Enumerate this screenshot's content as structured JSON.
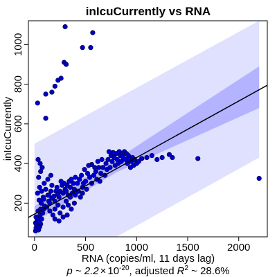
{
  "chart_data": {
    "type": "scatter",
    "title": "inIcuCurrently vs RNA",
    "xlabel": "RNA (copies/ml, 11 days lag)",
    "ylabel": "inIcuCurrently",
    "caption": {
      "p_prefix": "p ~ 2.2",
      "p_times": "×",
      "p_base": "10",
      "p_exp": "-20",
      "r2_prefix": ", adjusted",
      "r2_r": "R",
      "r2_exp": "2",
      "r2_value": " ~ 28.6%"
    },
    "xlim": [
      -60,
      2280
    ],
    "ylim": [
      30,
      1120
    ],
    "x_ticks": [
      0,
      500,
      1000,
      1500,
      2000
    ],
    "y_ticks": [
      200,
      400,
      600,
      800,
      1000
    ],
    "grid": false,
    "colors": {
      "points": "#0000cc",
      "point_edge": "#000033",
      "prediction_band": "#e0e0ff",
      "confidence_band": "#b3b3ff",
      "fit_line": "#000000"
    },
    "fit_line": {
      "intercept": 145,
      "slope": 0.285
    },
    "prediction_band": {
      "upper": [
        [
          0,
          500
        ],
        [
          2200,
          1120
        ]
      ],
      "lower": [
        [
          0,
          -200
        ],
        [
          2200,
          430
        ]
      ]
    },
    "confidence_band": {
      "upper": [
        [
          0,
          185
        ],
        [
          800,
          420
        ],
        [
          2200,
          890
        ]
      ],
      "lower": [
        [
          0,
          105
        ],
        [
          800,
          355
        ],
        [
          2200,
          680
        ]
      ]
    },
    "points": [
      [
        300,
        1090
      ],
      [
        570,
        1060
      ],
      [
        470,
        985
      ],
      [
        550,
        985
      ],
      [
        290,
        910
      ],
      [
        310,
        900
      ],
      [
        260,
        830
      ],
      [
        230,
        820
      ],
      [
        200,
        790
      ],
      [
        110,
        750
      ],
      [
        170,
        760
      ],
      [
        30,
        705
      ],
      [
        110,
        628
      ],
      [
        10,
        60
      ],
      [
        15,
        75
      ],
      [
        20,
        90
      ],
      [
        10,
        100
      ],
      [
        25,
        110
      ],
      [
        30,
        120
      ],
      [
        15,
        130
      ],
      [
        40,
        65
      ],
      [
        50,
        80
      ],
      [
        60,
        95
      ],
      [
        45,
        105
      ],
      [
        70,
        120
      ],
      [
        55,
        140
      ],
      [
        80,
        150
      ],
      [
        35,
        160
      ],
      [
        60,
        170
      ],
      [
        90,
        170
      ],
      [
        100,
        185
      ],
      [
        65,
        200
      ],
      [
        45,
        215
      ],
      [
        85,
        230
      ],
      [
        30,
        250
      ],
      [
        70,
        260
      ],
      [
        50,
        280
      ],
      [
        95,
        300
      ],
      [
        40,
        330
      ],
      [
        60,
        360
      ],
      [
        75,
        380
      ],
      [
        55,
        400
      ],
      [
        35,
        420
      ],
      [
        120,
        180
      ],
      [
        140,
        210
      ],
      [
        130,
        240
      ],
      [
        150,
        200
      ],
      [
        170,
        225
      ],
      [
        160,
        260
      ],
      [
        190,
        235
      ],
      [
        200,
        210
      ],
      [
        210,
        260
      ],
      [
        230,
        245
      ],
      [
        220,
        280
      ],
      [
        250,
        260
      ],
      [
        270,
        290
      ],
      [
        260,
        310
      ],
      [
        240,
        230
      ],
      [
        280,
        250
      ],
      [
        300,
        270
      ],
      [
        290,
        300
      ],
      [
        320,
        290
      ],
      [
        310,
        260
      ],
      [
        340,
        310
      ],
      [
        350,
        280
      ],
      [
        330,
        240
      ],
      [
        360,
        320
      ],
      [
        380,
        300
      ],
      [
        400,
        330
      ],
      [
        390,
        270
      ],
      [
        420,
        300
      ],
      [
        440,
        320
      ],
      [
        430,
        260
      ],
      [
        460,
        340
      ],
      [
        480,
        300
      ],
      [
        470,
        280
      ],
      [
        500,
        310
      ],
      [
        520,
        350
      ],
      [
        540,
        330
      ],
      [
        510,
        270
      ],
      [
        560,
        300
      ],
      [
        580,
        340
      ],
      [
        600,
        360
      ],
      [
        610,
        320
      ],
      [
        630,
        380
      ],
      [
        650,
        350
      ],
      [
        640,
        310
      ],
      [
        670,
        380
      ],
      [
        690,
        340
      ],
      [
        700,
        400
      ],
      [
        710,
        370
      ],
      [
        720,
        420
      ],
      [
        740,
        380
      ],
      [
        750,
        440
      ],
      [
        760,
        410
      ],
      [
        780,
        430
      ],
      [
        790,
        390
      ],
      [
        800,
        450
      ],
      [
        810,
        420
      ],
      [
        820,
        400
      ],
      [
        830,
        460
      ],
      [
        840,
        440
      ],
      [
        850,
        410
      ],
      [
        860,
        450
      ],
      [
        870,
        430
      ],
      [
        880,
        460
      ],
      [
        890,
        420
      ],
      [
        900,
        450
      ],
      [
        910,
        400
      ],
      [
        920,
        440
      ],
      [
        930,
        420
      ],
      [
        940,
        380
      ],
      [
        950,
        410
      ],
      [
        960,
        430
      ],
      [
        970,
        390
      ],
      [
        980,
        420
      ],
      [
        1000,
        400
      ],
      [
        1020,
        410
      ],
      [
        730,
        460
      ],
      [
        770,
        455
      ],
      [
        660,
        420
      ],
      [
        620,
        410
      ],
      [
        590,
        380
      ],
      [
        560,
        395
      ],
      [
        530,
        390
      ],
      [
        490,
        370
      ],
      [
        150,
        160
      ],
      [
        180,
        140
      ],
      [
        200,
        170
      ],
      [
        230,
        190
      ],
      [
        250,
        150
      ],
      [
        280,
        180
      ],
      [
        310,
        210
      ],
      [
        330,
        190
      ],
      [
        350,
        230
      ],
      [
        370,
        250
      ],
      [
        400,
        240
      ],
      [
        420,
        260
      ],
      [
        450,
        230
      ],
      [
        470,
        250
      ],
      [
        200,
        120
      ],
      [
        240,
        110
      ],
      [
        280,
        130
      ],
      [
        320,
        140
      ],
      [
        360,
        170
      ],
      [
        390,
        200
      ],
      [
        140,
        240
      ],
      [
        170,
        290
      ],
      [
        130,
        320
      ],
      [
        160,
        340
      ],
      [
        110,
        270
      ],
      [
        90,
        220
      ],
      [
        1050,
        425
      ],
      [
        1100,
        430
      ],
      [
        1150,
        440
      ],
      [
        1200,
        420
      ],
      [
        1250,
        430
      ],
      [
        1320,
        445
      ],
      [
        1350,
        430
      ],
      [
        1600,
        425
      ],
      [
        2200,
        325
      ]
    ]
  }
}
